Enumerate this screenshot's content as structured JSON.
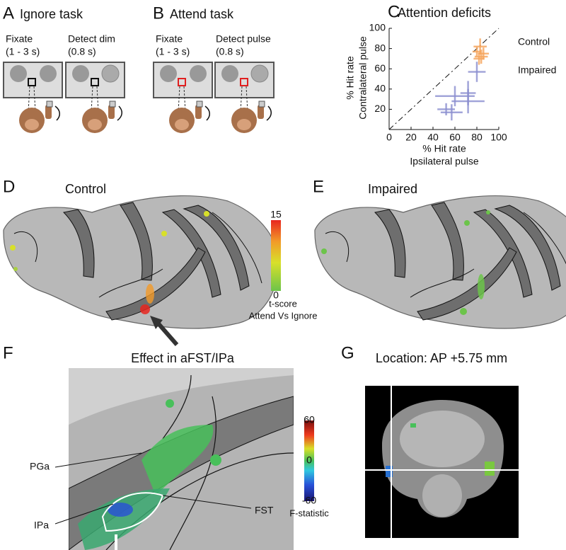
{
  "panel_a": {
    "letter": "A",
    "title": "Ignore task",
    "steps": [
      {
        "label": "Fixate",
        "duration": "(1 - 3 s)"
      },
      {
        "label": "Detect dim",
        "duration": "(0.8 s)"
      }
    ]
  },
  "panel_b": {
    "letter": "B",
    "title": "Attend task",
    "steps": [
      {
        "label": "Fixate",
        "duration": "(1 - 3 s)"
      },
      {
        "label": "Detect pulse",
        "duration": "(0.8 s)"
      }
    ]
  },
  "chart_data": {
    "type": "scatter",
    "letter": "C",
    "title": "Attention deficits",
    "xlabel_lines": [
      "% Hit rate",
      "Ipsilateral pulse"
    ],
    "ylabel_lines": [
      "% Hit rate",
      "Contralateral pulse"
    ],
    "xlim": [
      0,
      100
    ],
    "ylim": [
      0,
      100
    ],
    "xticks": [
      0,
      20,
      40,
      60,
      80,
      100
    ],
    "yticks": [
      20,
      40,
      60,
      80,
      100
    ],
    "series": [
      {
        "name": "Control",
        "color": "#f6a55c",
        "x": [
          83,
          86,
          80,
          84,
          82
        ],
        "values": [
          82,
          75,
          77,
          72,
          70
        ],
        "x_err": [
          6,
          5,
          4,
          6,
          5
        ],
        "y_err": [
          8,
          6,
          5,
          7,
          6
        ]
      },
      {
        "name": "Impaired",
        "color": "#8c8fd0",
        "x": [
          80,
          72,
          60,
          57,
          72,
          52
        ],
        "values": [
          57,
          36,
          33,
          17,
          28,
          20
        ],
        "x_err": [
          8,
          7,
          18,
          10,
          15,
          8
        ],
        "y_err": [
          10,
          12,
          10,
          8,
          12,
          6
        ]
      }
    ]
  },
  "panel_d": {
    "letter": "D",
    "title": "Control"
  },
  "panel_e": {
    "letter": "E",
    "title": "Impaired"
  },
  "colorbar_t": {
    "ticks": [
      15,
      0
    ],
    "label_lines": [
      "t-score",
      "Attend Vs Ignore"
    ]
  },
  "panel_f": {
    "letter": "F",
    "title": "Effect in aFST/IPa",
    "labels": [
      "PGa",
      "IPa",
      "FST"
    ]
  },
  "colorbar_f": {
    "ticks": [
      60,
      0,
      -60
    ],
    "label": "F-statistic"
  },
  "panel_g": {
    "letter": "G",
    "title": "Location: AP +5.75 mm"
  }
}
